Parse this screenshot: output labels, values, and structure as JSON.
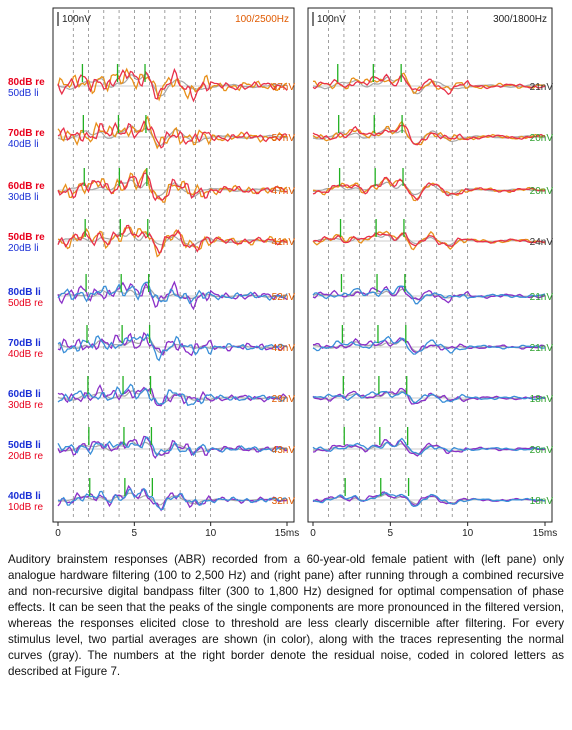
{
  "chart_data": [
    {
      "type": "line",
      "pane": "left",
      "scale_label": "100nV",
      "filter_label": "100/2500Hz",
      "x_ticks": [
        "0",
        "5",
        "10",
        "15ms"
      ],
      "x_range": [
        0,
        15
      ],
      "dashed_gridlines_ms": [
        1,
        2,
        3,
        4,
        5,
        6,
        7,
        8,
        9,
        10
      ],
      "rows": [
        {
          "label_a": "80dB re",
          "label_b": "50dB li",
          "noise": "37nV",
          "noise_color": "#e05a00"
        },
        {
          "label_a": "70dB re",
          "label_b": "40dB li",
          "noise": "57nV",
          "noise_color": "#e05a00"
        },
        {
          "label_a": "60dB re",
          "label_b": "30dB li",
          "noise": "47nV",
          "noise_color": "#e05a00"
        },
        {
          "label_a": "50dB re",
          "label_b": "20dB li",
          "noise": "41nV",
          "noise_color": "#e05a00"
        },
        {
          "label_a": "80dB li",
          "label_b": "50dB re",
          "noise": "52nV",
          "noise_color": "#e05a00"
        },
        {
          "label_a": "70dB li",
          "label_b": "40dB re",
          "noise": "43nV",
          "noise_color": "#e05a00"
        },
        {
          "label_a": "60dB li",
          "label_b": "30dB re",
          "noise": "29nV",
          "noise_color": "#e05a00"
        },
        {
          "label_a": "50dB li",
          "label_b": "20dB re",
          "noise": "43nV",
          "noise_color": "#e05a00"
        },
        {
          "label_a": "40dB li",
          "label_b": "10dB re",
          "noise": "32nV",
          "noise_color": "#e05a00"
        }
      ]
    },
    {
      "type": "line",
      "pane": "right",
      "scale_label": "100nV",
      "filter_label": "300/1800Hz",
      "x_ticks": [
        "0",
        "5",
        "10",
        "15ms"
      ],
      "x_range": [
        0,
        15
      ],
      "dashed_gridlines_ms": [
        1,
        2,
        3,
        4,
        5,
        6,
        7,
        8,
        9,
        10
      ],
      "rows": [
        {
          "noise": "21nV",
          "noise_color": "#333333"
        },
        {
          "noise": "20nV",
          "noise_color": "#2ea12e"
        },
        {
          "noise": "20nV",
          "noise_color": "#2ea12e"
        },
        {
          "noise": "24nV",
          "noise_color": "#333333"
        },
        {
          "noise": "21nV",
          "noise_color": "#2ea12e"
        },
        {
          "noise": "21nV",
          "noise_color": "#2ea12e"
        },
        {
          "noise": "18nV",
          "noise_color": "#2ea12e"
        },
        {
          "noise": "20nV",
          "noise_color": "#2ea12e"
        },
        {
          "noise": "18nV",
          "noise_color": "#2ea12e"
        }
      ]
    }
  ],
  "colors": {
    "re_label": "#e8001c",
    "li_label": "#1a2fd6",
    "trace_red": "#e8304a",
    "trace_orange": "#e8901a",
    "trace_blue": "#3a8fd8",
    "trace_purple": "#8a2fc8",
    "trace_gray": "#a8a8a8",
    "marker_green": "#22b022"
  },
  "caption": "Auditory brainstem responses (ABR) recorded from a 60-year-old female patient with (left pane) only analogue hardware filtering (100 to 2,500 Hz) and (right pane) after running through a combined recursive and non-recursive digital bandpass filter (300 to 1,800 Hz) designed for optimal compensation of phase effects. It can be seen that the peaks of the single components are more pronounced in the filtered version, whereas the responses elicited close to threshold are less clearly discernible after filtering. For every stimulus level, two partial averages are shown (in color), along with the traces representing the normal curves (gray). The numbers at the right border denote the residual noise, coded in colored letters as described at Figure 7."
}
